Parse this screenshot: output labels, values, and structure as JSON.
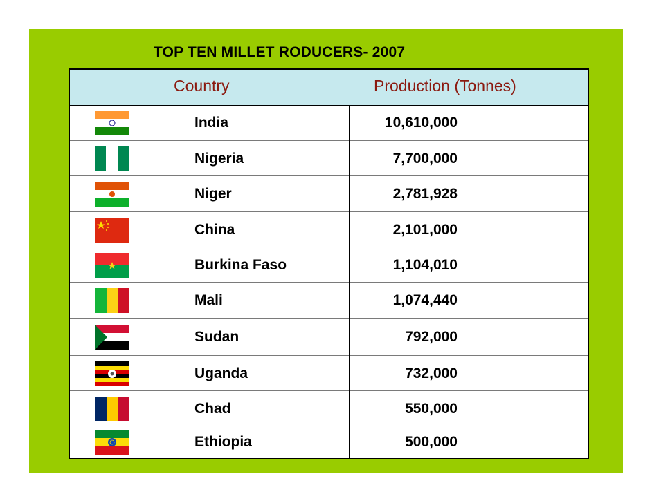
{
  "title": "TOP TEN MILLET RODUCERS-  2007",
  "headers": {
    "country": "Country",
    "production": "Production (Tonnes)"
  },
  "rows": [
    {
      "country": "India",
      "production": "10,610,000",
      "flag_icon": "india-flag-icon"
    },
    {
      "country": "Nigeria",
      "production": "7,700,000",
      "flag_icon": "nigeria-flag-icon"
    },
    {
      "country": "Niger",
      "production": "2,781,928",
      "flag_icon": "niger-flag-icon"
    },
    {
      "country": "China",
      "production": "2,101,000",
      "flag_icon": "china-flag-icon"
    },
    {
      "country": "Burkina Faso",
      "production": "1,104,010",
      "flag_icon": "burkina-faso-flag-icon"
    },
    {
      "country": "Mali",
      "production": "1,074,440",
      "flag_icon": "mali-flag-icon"
    },
    {
      "country": "Sudan",
      "production": "792,000",
      "flag_icon": "sudan-flag-icon"
    },
    {
      "country": "Uganda",
      "production": "732,000",
      "flag_icon": "uganda-flag-icon"
    },
    {
      "country": "Chad",
      "production": "550,000",
      "flag_icon": "chad-flag-icon"
    },
    {
      "country": "Ethiopia",
      "production": "500,000",
      "flag_icon": "ethiopia-flag-icon"
    }
  ],
  "colors": {
    "background": "#99cc00",
    "header_fill": "#c6e9ee",
    "header_text": "#8b1a10"
  }
}
